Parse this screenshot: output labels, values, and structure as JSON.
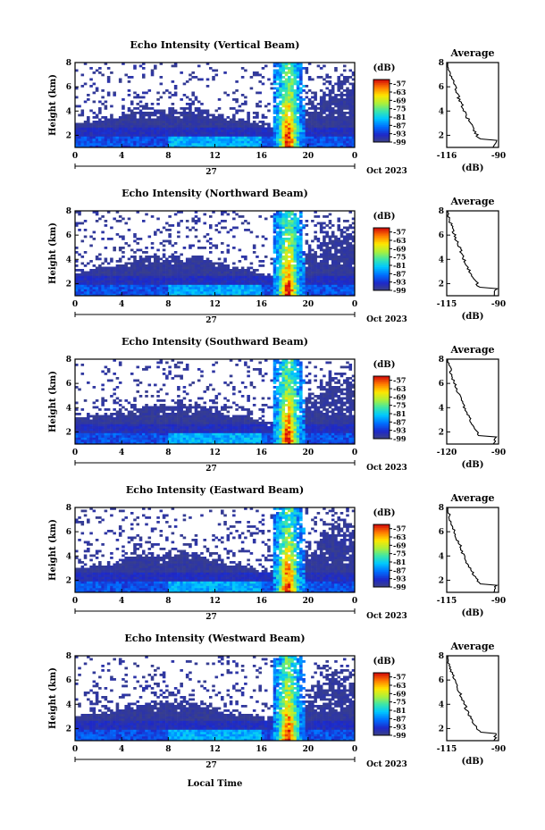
{
  "figure": {
    "xaxis_label": "Local Time",
    "date_label": "Oct 2023",
    "day_label": "27",
    "colorbar_unit": "(dB)",
    "profile_xlabel": "(dB)"
  },
  "chart_data": [
    {
      "type": "heatmap",
      "title": "Echo Intensity (Vertical Beam)",
      "ylabel": "Height (km)",
      "xlabel": "",
      "x_ticks": [
        "0",
        "4",
        "8",
        "12",
        "16",
        "20",
        "0"
      ],
      "y_ticks": [
        "2",
        "4",
        "6",
        "8"
      ],
      "xlim_hours": [
        0,
        24
      ],
      "ylim_km": [
        1.0,
        8.0
      ],
      "colorbar": {
        "ticks": [
          "-57",
          "-63",
          "-69",
          "-75",
          "-81",
          "-87",
          "-93",
          "-99"
        ],
        "range_db": [
          -99,
          -54
        ]
      },
      "profile": {
        "title": "Average",
        "xticks": [
          "-116",
          "-90"
        ],
        "xlim": [
          -116,
          -90
        ],
        "ylim_km": [
          1.0,
          8.0
        ]
      }
    },
    {
      "type": "heatmap",
      "title": "Echo Intensity (Northward Beam)",
      "ylabel": "Height (km)",
      "xlabel": "",
      "x_ticks": [
        "0",
        "4",
        "8",
        "12",
        "16",
        "20",
        "0"
      ],
      "y_ticks": [
        "2",
        "4",
        "6",
        "8"
      ],
      "xlim_hours": [
        0,
        24
      ],
      "ylim_km": [
        1.0,
        8.0
      ],
      "colorbar": {
        "ticks": [
          "-57",
          "-63",
          "-69",
          "-75",
          "-81",
          "-87",
          "-93",
          "-99"
        ],
        "range_db": [
          -99,
          -54
        ]
      },
      "profile": {
        "title": "Average",
        "xticks": [
          "-115",
          "-90"
        ],
        "xlim": [
          -115,
          -90
        ],
        "ylim_km": [
          1.0,
          8.0
        ]
      }
    },
    {
      "type": "heatmap",
      "title": "Echo Intensity (Southward Beam)",
      "ylabel": "Height (km)",
      "xlabel": "",
      "x_ticks": [
        "0",
        "4",
        "8",
        "12",
        "16",
        "20",
        "0"
      ],
      "y_ticks": [
        "2",
        "4",
        "6",
        "8"
      ],
      "xlim_hours": [
        0,
        24
      ],
      "ylim_km": [
        1.0,
        8.0
      ],
      "colorbar": {
        "ticks": [
          "-57",
          "-63",
          "-69",
          "-75",
          "-81",
          "-87",
          "-93",
          "-99"
        ],
        "range_db": [
          -99,
          -54
        ]
      },
      "profile": {
        "title": "Average",
        "xticks": [
          "-120",
          "-90"
        ],
        "xlim": [
          -120,
          -90
        ],
        "ylim_km": [
          1.0,
          8.0
        ]
      }
    },
    {
      "type": "heatmap",
      "title": "Echo Intensity (Eastward Beam)",
      "ylabel": "Height (km)",
      "xlabel": "",
      "x_ticks": [
        "0",
        "4",
        "8",
        "12",
        "16",
        "20",
        "0"
      ],
      "y_ticks": [
        "2",
        "4",
        "6",
        "8"
      ],
      "xlim_hours": [
        0,
        24
      ],
      "ylim_km": [
        1.0,
        8.0
      ],
      "colorbar": {
        "ticks": [
          "-57",
          "-63",
          "-69",
          "-75",
          "-81",
          "-87",
          "-93",
          "-99"
        ],
        "range_db": [
          -99,
          -54
        ]
      },
      "profile": {
        "title": "Average",
        "xticks": [
          "-115",
          "-90"
        ],
        "xlim": [
          -115,
          -90
        ],
        "ylim_km": [
          1.0,
          8.0
        ]
      }
    },
    {
      "type": "heatmap",
      "title": "Echo Intensity (Westward Beam)",
      "ylabel": "Height (km)",
      "xlabel": "Local Time",
      "x_ticks": [
        "0",
        "4",
        "8",
        "12",
        "16",
        "20",
        "0"
      ],
      "y_ticks": [
        "2",
        "4",
        "6",
        "8"
      ],
      "xlim_hours": [
        0,
        24
      ],
      "ylim_km": [
        1.0,
        8.0
      ],
      "colorbar": {
        "ticks": [
          "-57",
          "-63",
          "-69",
          "-75",
          "-81",
          "-87",
          "-93",
          "-99"
        ],
        "range_db": [
          -99,
          -54
        ]
      },
      "profile": {
        "title": "Average",
        "xticks": [
          "-115",
          "-90"
        ],
        "xlim": [
          -115,
          -90
        ],
        "ylim_km": [
          1.0,
          8.0
        ]
      }
    }
  ]
}
